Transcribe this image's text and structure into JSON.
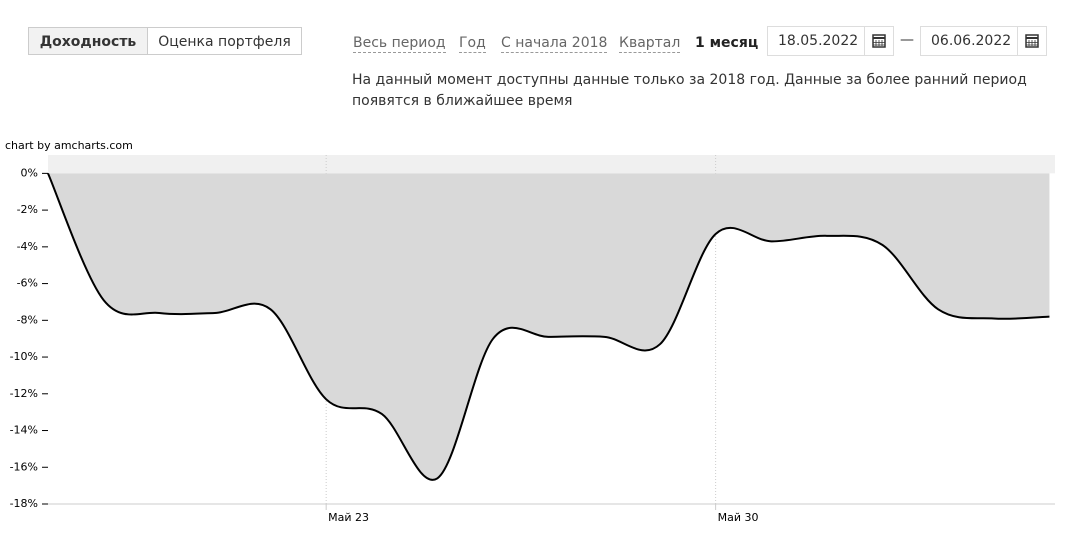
{
  "tabs": [
    "Доходность",
    "Оценка портфеля"
  ],
  "periods": [
    "Весь период",
    "Год",
    "С начала 2018",
    "Квартал",
    "1 месяц"
  ],
  "date_from": "18.05.2022",
  "date_separator": "—",
  "date_to": "06.06.2022",
  "note": "На данный момент доступны данные только за 2018 год. Данные за более ранний период появятся в ближайшее время",
  "credit": "chart by amcharts.com",
  "chart_data": {
    "type": "line",
    "x": [
      18,
      19,
      20,
      21,
      22,
      23,
      24,
      25,
      26,
      27,
      28,
      29,
      30,
      31,
      32,
      33,
      34,
      35,
      36
    ],
    "series": [
      {
        "color": "#000000",
        "fill": "#d9d9d9",
        "values": [
          0,
          -6.9,
          -7.6,
          -7.6,
          -7.4,
          -12.3,
          -13.1,
          -16.6,
          -9.0,
          -8.9,
          -8.9,
          -9.3,
          -3.3,
          -3.7,
          -3.4,
          -3.9,
          -7.4,
          -7.9,
          -7.8
        ]
      }
    ],
    "xlim": [
      18,
      36.1
    ],
    "xticks": [
      {
        "value": 23,
        "label": "Май 23"
      },
      {
        "value": 30,
        "label": "Май 30"
      }
    ],
    "ylim": [
      -18,
      1
    ],
    "yticks": [
      {
        "value": 0,
        "label": "0%"
      },
      {
        "value": -2,
        "label": "-2%"
      },
      {
        "value": -4,
        "label": "-4%"
      },
      {
        "value": -6,
        "label": "-6%"
      },
      {
        "value": -8,
        "label": "-8%"
      },
      {
        "value": -10,
        "label": "-10%"
      },
      {
        "value": -12,
        "label": "-12%"
      },
      {
        "value": -14,
        "label": "-14%"
      },
      {
        "value": -16,
        "label": "-16%"
      },
      {
        "value": -18,
        "label": "-18%"
      }
    ],
    "grid": true
  }
}
